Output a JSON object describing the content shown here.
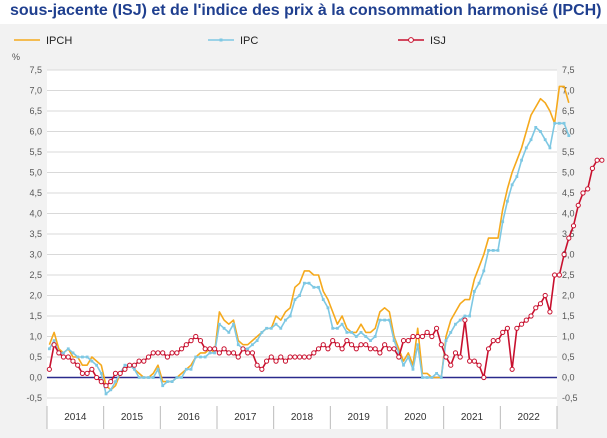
{
  "title": "sous-jacente (ISJ) et de l'indice des prix à la consommation harmonisé (IPCH)",
  "chart_data": {
    "type": "line",
    "unit": "%",
    "ylim": [
      -0.5,
      7.5
    ],
    "yticks": [
      "7,5",
      "7,0",
      "6,5",
      "6,0",
      "5,5",
      "5,0",
      "4,5",
      "4,0",
      "3,5",
      "3,0",
      "2,5",
      "2,0",
      "1,5",
      "1,0",
      "0,5",
      "0,0",
      "-0,5"
    ],
    "years": [
      "2014",
      "2015",
      "2016",
      "2017",
      "2018",
      "2019",
      "2020",
      "2021",
      "2022"
    ],
    "x_start": "2014-01",
    "grid": true,
    "legend_position": "top",
    "colors": {
      "ipch": "#f5a91c",
      "ipc": "#7ec8e3",
      "isj": "#c8102e",
      "zero": "#2a2a8c"
    },
    "series": [
      {
        "name": "IPCH",
        "key": "ipch",
        "values": [
          0.8,
          1.1,
          0.7,
          0.6,
          0.7,
          0.5,
          0.5,
          0.3,
          0.3,
          0.5,
          0.4,
          0.3,
          -0.2,
          -0.3,
          -0.2,
          0.1,
          0.2,
          0.3,
          0.2,
          0.1,
          0.0,
          0.0,
          0.1,
          0.3,
          -0.1,
          -0.1,
          -0.1,
          0.0,
          0.1,
          0.2,
          0.3,
          0.5,
          0.6,
          0.6,
          0.7,
          0.6,
          1.6,
          1.4,
          1.3,
          1.4,
          0.9,
          0.8,
          0.8,
          0.9,
          1.0,
          1.1,
          1.2,
          1.2,
          1.5,
          1.4,
          1.6,
          1.7,
          2.2,
          2.3,
          2.6,
          2.6,
          2.5,
          2.5,
          2.1,
          1.9,
          1.6,
          1.3,
          1.5,
          1.2,
          1.1,
          1.1,
          1.3,
          1.1,
          1.1,
          1.2,
          1.6,
          1.7,
          1.6,
          1.0,
          0.7,
          0.4,
          0.6,
          0.3,
          1.2,
          0.1,
          0.1,
          0.0,
          0.0,
          0.0,
          1.0,
          1.4,
          1.6,
          1.8,
          1.9,
          1.9,
          2.4,
          2.7,
          3.0,
          3.4,
          3.4,
          3.4,
          4.1,
          4.6,
          5.0,
          5.3,
          5.6,
          6.0,
          6.4,
          6.6,
          6.8,
          6.7,
          6.5,
          6.2,
          7.1,
          7.1,
          6.7
        ]
      },
      {
        "name": "IPC",
        "key": "ipc",
        "values": [
          0.7,
          0.9,
          0.6,
          0.6,
          0.7,
          0.6,
          0.5,
          0.5,
          0.5,
          0.4,
          0.3,
          0.1,
          -0.4,
          -0.3,
          -0.1,
          0.1,
          0.3,
          0.3,
          0.2,
          0.0,
          0.0,
          0.0,
          0.0,
          0.2,
          -0.2,
          -0.1,
          -0.1,
          0.0,
          0.0,
          0.2,
          0.2,
          0.5,
          0.5,
          0.5,
          0.6,
          0.6,
          1.3,
          1.2,
          1.1,
          1.3,
          0.8,
          0.7,
          0.7,
          0.8,
          0.9,
          1.1,
          1.2,
          1.2,
          1.3,
          1.2,
          1.4,
          1.5,
          1.9,
          2.0,
          2.3,
          2.3,
          2.2,
          2.2,
          1.9,
          1.7,
          1.2,
          1.2,
          1.3,
          1.1,
          1.1,
          1.0,
          1.1,
          1.0,
          0.9,
          1.0,
          1.4,
          1.4,
          1.4,
          0.9,
          0.6,
          0.3,
          0.5,
          0.2,
          0.8,
          0.0,
          0.0,
          0.0,
          0.1,
          0.0,
          0.9,
          1.1,
          1.3,
          1.4,
          1.5,
          1.5,
          2.1,
          2.3,
          2.6,
          3.1,
          3.1,
          3.1,
          3.8,
          4.3,
          4.7,
          4.9,
          5.3,
          5.6,
          5.8,
          6.1,
          6.0,
          5.8,
          5.6,
          6.2,
          6.2,
          6.2,
          5.9
        ]
      },
      {
        "name": "ISJ",
        "key": "isj",
        "values": [
          0.2,
          0.8,
          0.6,
          0.5,
          0.5,
          0.4,
          0.3,
          0.1,
          0.1,
          0.2,
          0.0,
          -0.1,
          -0.2,
          -0.1,
          0.1,
          0.1,
          0.2,
          0.3,
          0.3,
          0.4,
          0.4,
          0.5,
          0.6,
          0.6,
          0.6,
          0.5,
          0.6,
          0.6,
          0.7,
          0.8,
          0.9,
          1.0,
          0.9,
          0.7,
          0.7,
          0.7,
          0.6,
          0.7,
          0.6,
          0.6,
          0.5,
          0.7,
          0.6,
          0.6,
          0.3,
          0.2,
          0.4,
          0.5,
          0.4,
          0.5,
          0.4,
          0.5,
          0.5,
          0.5,
          0.5,
          0.5,
          0.6,
          0.7,
          0.8,
          0.7,
          0.9,
          0.8,
          0.7,
          0.9,
          0.8,
          0.7,
          0.8,
          0.8,
          0.7,
          0.7,
          0.6,
          0.8,
          0.7,
          0.7,
          0.5,
          0.9,
          0.9,
          1.0,
          1.0,
          1.0,
          1.1,
          1.0,
          1.2,
          0.8,
          0.5,
          0.3,
          0.6,
          0.5,
          1.4,
          0.4,
          0.4,
          0.3,
          0.0,
          0.7,
          0.9,
          0.9,
          1.1,
          1.2,
          0.2,
          1.2,
          1.3,
          1.4,
          1.5,
          1.7,
          1.8,
          2.0,
          1.6,
          2.5,
          2.5,
          3.0,
          3.4,
          3.7,
          4.2,
          4.5,
          4.6,
          5.1,
          5.3,
          5.3
        ]
      }
    ]
  }
}
